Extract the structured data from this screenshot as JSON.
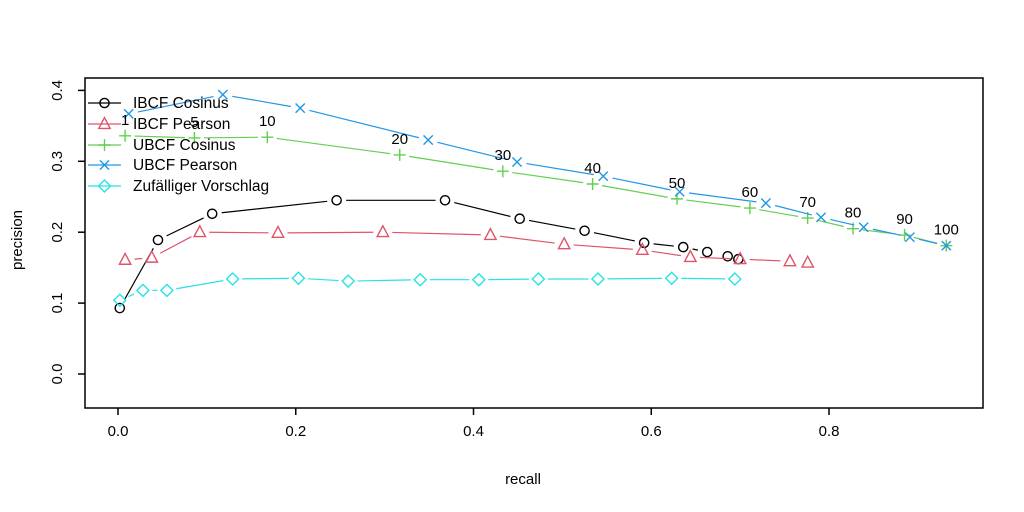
{
  "chart_data": {
    "type": "line",
    "title": "",
    "xlabel": "recall",
    "ylabel": "precision",
    "grid": false,
    "legend_position": "top-left-inside",
    "x_ticks": {
      "values": [
        0.0,
        0.2,
        0.4,
        0.6,
        0.8
      ],
      "labels": [
        "0.0",
        "0.2",
        "0.4",
        "0.6",
        "0.8"
      ]
    },
    "y_ticks": {
      "values": [
        0.0,
        0.1,
        0.2,
        0.3,
        0.4
      ],
      "labels": [
        "0.0",
        "0.1",
        "0.2",
        "0.3",
        "0.4"
      ]
    },
    "xlim": [
      -0.037,
      0.973
    ],
    "ylim": [
      -0.048,
      0.4175
    ],
    "series": [
      {
        "name": "IBCF Cosinus",
        "color": "#000000",
        "marker": "circle",
        "points": [
          [
            0.002,
            0.093
          ],
          [
            0.045,
            0.189
          ],
          [
            0.106,
            0.226
          ],
          [
            0.246,
            0.245
          ],
          [
            0.368,
            0.245
          ],
          [
            0.452,
            0.219
          ],
          [
            0.525,
            0.202
          ],
          [
            0.592,
            0.185
          ],
          [
            0.636,
            0.179
          ],
          [
            0.663,
            0.172
          ],
          [
            0.686,
            0.166
          ],
          [
            0.698,
            0.162
          ]
        ]
      },
      {
        "name": "IBCF Pearson",
        "color": "#DF536B",
        "marker": "triangle",
        "points": [
          [
            0.008,
            0.161
          ],
          [
            0.038,
            0.164
          ],
          [
            0.092,
            0.2
          ],
          [
            0.18,
            0.199
          ],
          [
            0.298,
            0.2
          ],
          [
            0.419,
            0.196
          ],
          [
            0.502,
            0.183
          ],
          [
            0.59,
            0.175
          ],
          [
            0.644,
            0.165
          ],
          [
            0.7,
            0.162
          ],
          [
            0.756,
            0.159
          ],
          [
            0.776,
            0.157
          ]
        ]
      },
      {
        "name": "UBCF Cosinus",
        "color": "#61D04F",
        "marker": "plus",
        "points": [
          [
            0.008,
            0.336
          ],
          [
            0.086,
            0.333
          ],
          [
            0.168,
            0.334
          ],
          [
            0.317,
            0.309
          ],
          [
            0.433,
            0.286
          ],
          [
            0.534,
            0.268
          ],
          [
            0.629,
            0.247
          ],
          [
            0.711,
            0.234
          ],
          [
            0.776,
            0.22
          ],
          [
            0.827,
            0.205
          ],
          [
            0.885,
            0.196
          ],
          [
            0.932,
            0.181
          ]
        ]
      },
      {
        "name": "UBCF Pearson",
        "color": "#2297E6",
        "marker": "x",
        "points": [
          [
            0.012,
            0.367
          ],
          [
            0.118,
            0.394
          ],
          [
            0.205,
            0.375
          ],
          [
            0.349,
            0.33
          ],
          [
            0.449,
            0.299
          ],
          [
            0.546,
            0.279
          ],
          [
            0.632,
            0.257
          ],
          [
            0.729,
            0.241
          ],
          [
            0.791,
            0.221
          ],
          [
            0.839,
            0.207
          ],
          [
            0.891,
            0.193
          ],
          [
            0.932,
            0.181
          ]
        ]
      },
      {
        "name": "Zufälliger Vorschlag",
        "color": "#28E2E5",
        "marker": "diamond",
        "points": [
          [
            0.002,
            0.104
          ],
          [
            0.028,
            0.118
          ],
          [
            0.055,
            0.118
          ],
          [
            0.129,
            0.134
          ],
          [
            0.203,
            0.135
          ],
          [
            0.259,
            0.131
          ],
          [
            0.34,
            0.133
          ],
          [
            0.406,
            0.133
          ],
          [
            0.473,
            0.134
          ],
          [
            0.54,
            0.134
          ],
          [
            0.623,
            0.135
          ],
          [
            0.694,
            0.134
          ]
        ]
      }
    ],
    "point_labels": {
      "attached_to_series": "UBCF Cosinus",
      "labels": [
        "1",
        "5",
        "10",
        "20",
        "30",
        "40",
        "50",
        "60",
        "70",
        "80",
        "90",
        "100"
      ]
    },
    "legend": {
      "entries": [
        "IBCF Cosinus",
        "IBCF Pearson",
        "UBCF Cosinus",
        "UBCF Pearson",
        "Zufälliger Vorschlag"
      ]
    }
  }
}
